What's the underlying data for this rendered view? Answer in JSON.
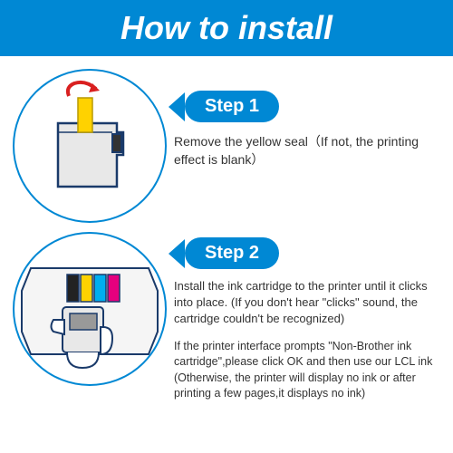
{
  "header": {
    "title": "How to install",
    "background_color": "#0088d4",
    "text_color": "#ffffff",
    "height": 62,
    "font_size": 36
  },
  "steps": [
    {
      "label": "Step 1",
      "text": "Remove the yellow seal（If not, the printing effect is blank）",
      "circle_diameter": 170,
      "badge_bg": "#0088d4",
      "badge_font_size": 20,
      "text_font_size": 14,
      "top_margin": 14
    },
    {
      "label": "Step 2",
      "text": "Install the ink cartridge to the printer until it clicks into place. (If you don't hear \"clicks\" sound, the cartridge couldn't be recognized)",
      "text2": "If the printer interface prompts \"Non-Brother ink cartridge\",please click OK and then use our LCL ink (Otherwise, the printer will display no ink or after printing a few pages,it displays no ink)",
      "circle_diameter": 170,
      "badge_bg": "#0088d4",
      "badge_font_size": 20,
      "text_font_size": 13,
      "top_margin": 10
    }
  ],
  "colors": {
    "accent": "#0088d4",
    "text": "#333333",
    "seal_yellow": "#ffd200",
    "arrow_red": "#d92020",
    "cartridge_gray": "#e8e8e8",
    "cartridge_dark": "#666666"
  }
}
